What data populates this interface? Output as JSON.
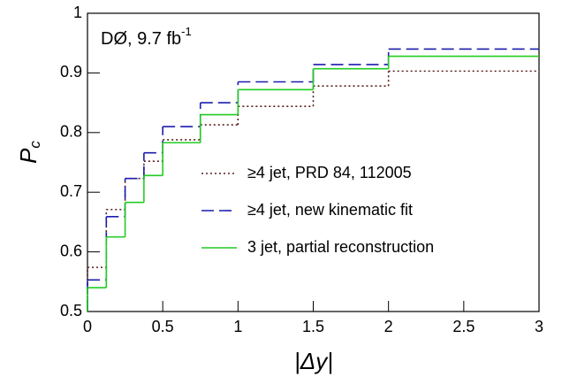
{
  "chart_data": {
    "type": "histogram",
    "annotation": {
      "text": "DØ, 9.7 fb",
      "superscript": "-1"
    },
    "xlabel": "|Δy|",
    "ylabel": {
      "text": "P",
      "subscript": "c"
    },
    "bins": [
      0,
      0.125,
      0.25,
      0.375,
      0.5,
      0.75,
      1,
      1.5,
      2,
      3
    ],
    "series": [
      {
        "name": "≥4 jet, PRD 84, 112005",
        "color": "#5a1e1e",
        "dash": "dotted",
        "values": [
          0.574,
          0.671,
          0.723,
          0.752,
          0.788,
          0.813,
          0.844,
          0.878,
          0.903
        ]
      },
      {
        "name": "≥4 jet, new kinematic fit",
        "color": "#1c1cb0",
        "dash": "dashed",
        "values": [
          0.553,
          0.659,
          0.723,
          0.766,
          0.81,
          0.85,
          0.885,
          0.914,
          0.94
        ]
      },
      {
        "name": "3 jet, partial reconstruction",
        "color": "#22cc22",
        "dash": "solid",
        "values": [
          0.54,
          0.625,
          0.683,
          0.728,
          0.783,
          0.83,
          0.872,
          0.907,
          0.928
        ]
      }
    ],
    "xlim": [
      0,
      3
    ],
    "xticks": [
      0,
      0.5,
      1,
      1.5,
      2,
      2.5,
      3
    ],
    "ylim": [
      0.5,
      1
    ],
    "yticks": [
      0.5,
      0.6,
      0.7,
      0.8,
      0.9,
      1
    ]
  }
}
